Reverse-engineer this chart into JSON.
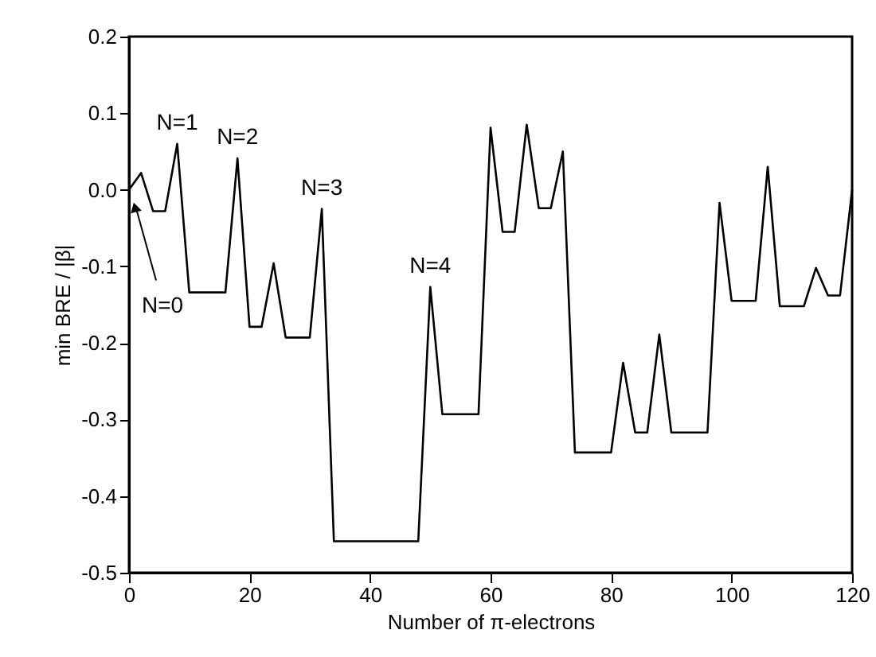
{
  "chart_data": {
    "type": "line",
    "xlabel": "Number of π-electrons",
    "ylabel": "min BRE / |β|",
    "x": [
      0,
      2,
      4,
      6,
      8,
      10,
      12,
      14,
      16,
      18,
      20,
      22,
      24,
      26,
      28,
      30,
      32,
      34,
      36,
      38,
      40,
      42,
      44,
      46,
      48,
      50,
      52,
      54,
      56,
      58,
      60,
      62,
      64,
      66,
      68,
      70,
      72,
      74,
      76,
      78,
      80,
      82,
      84,
      86,
      88,
      90,
      92,
      94,
      96,
      98,
      100,
      102,
      104,
      106,
      108,
      110,
      112,
      114,
      116,
      118,
      120
    ],
    "series": [
      {
        "color": "#000000",
        "values": [
          0.0,
          0.022,
          -0.028,
          -0.028,
          0.06,
          -0.134,
          -0.134,
          -0.134,
          -0.134,
          0.041,
          -0.179,
          -0.179,
          -0.096,
          -0.193,
          -0.193,
          -0.193,
          -0.025,
          -0.459,
          -0.459,
          -0.459,
          -0.459,
          -0.459,
          -0.459,
          -0.459,
          -0.459,
          -0.127,
          -0.293,
          -0.293,
          -0.293,
          -0.293,
          0.081,
          -0.055,
          -0.055,
          0.085,
          -0.024,
          -0.024,
          0.05,
          -0.343,
          -0.343,
          -0.343,
          -0.343,
          -0.226,
          -0.317,
          -0.317,
          -0.189,
          -0.317,
          -0.317,
          -0.317,
          -0.317,
          -0.017,
          -0.145,
          -0.145,
          -0.145,
          0.03,
          -0.152,
          -0.152,
          -0.152,
          -0.102,
          -0.138,
          -0.138,
          0.0
        ]
      }
    ],
    "xlim": [
      0,
      120
    ],
    "xticks": [
      0,
      20,
      40,
      60,
      80,
      100,
      120
    ],
    "ylim": [
      -0.5,
      0.2
    ],
    "yticks": [
      {
        "value": -0.5,
        "label": "-0.5"
      },
      {
        "value": -0.4,
        "label": "-0.4"
      },
      {
        "value": -0.3,
        "label": "-0.3"
      },
      {
        "value": -0.2,
        "label": "-0.2"
      },
      {
        "value": -0.1,
        "label": "-0.1"
      },
      {
        "value": 0,
        "label": "0.0"
      },
      0.1,
      0.2
    ],
    "grid": false,
    "marker": "none",
    "line_style": "solid",
    "annotations": [
      "N=0",
      {
        "text": "N=1",
        "x": 8,
        "y": 0.06
      },
      {
        "text": "N=2",
        "x": 18,
        "y": 0.041
      },
      {
        "text": "N=3",
        "x": 32,
        "y": -0.025
      },
      {
        "text": "N=4",
        "x": 50,
        "y": -0.127
      }
    ]
  }
}
